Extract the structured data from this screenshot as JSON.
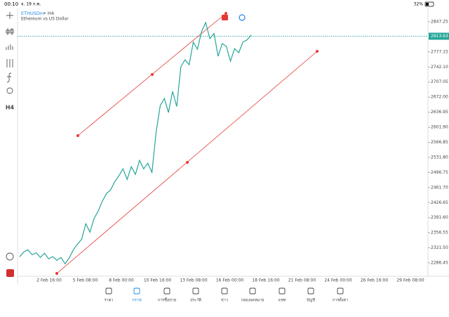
{
  "status_bar": {
    "time": "00:10",
    "date": "จ. 19 ก.พ.",
    "battery": "32%"
  },
  "symbol": {
    "name": "ETHUSDm",
    "timeframe": "• H4",
    "description": "Ethereum vs US Dollar"
  },
  "toolbar": {
    "timeframe": "H4"
  },
  "chart": {
    "type": "line",
    "color": "#26a69a",
    "values": [
      2300.6,
      2312,
      2317.0,
      2305.5,
      2310,
      2299.0,
      2308.8,
      2295.7,
      2301,
      2292.4,
      2299.0,
      2284.2,
      2298,
      2317.0,
      2330,
      2341.5,
      2377.5,
      2357.9,
      2390,
      2407.0,
      2430,
      2447.9,
      2456.1,
      2475,
      2488.9,
      2505.2,
      2480.6,
      2510.1,
      2492.1,
      2524.8,
      2505.2,
      2518.3,
      2497.0,
      2590,
      2652.6,
      2668.9,
      2636.2,
      2685.3,
      2650,
      2742.5,
      2758.9,
      2747.4,
      2799.8,
      2783.4,
      2824.3,
      2845.6,
      2808.0,
      2820,
      2767.1,
      2796.5,
      2790,
      2755.6,
      2785,
      2775.3,
      2800,
      2805,
      2816.2
    ],
    "current_price": 2813.63,
    "ylim": [
      2255.4,
      2878.3
    ],
    "yticks": [
      {
        "value": 2847.25,
        "label": "2847.25"
      },
      {
        "value": 2777.15,
        "label": "2777.15"
      },
      {
        "value": 2742.1,
        "label": "2742.10"
      },
      {
        "value": 2707.05,
        "label": "2707.05"
      },
      {
        "value": 2672,
        "label": "2672.00"
      },
      {
        "value": 2636.95,
        "label": "2636.95"
      },
      {
        "value": 2601.9,
        "label": "2601.90"
      },
      {
        "value": 2566.85,
        "label": "2566.85"
      },
      {
        "value": 2531.8,
        "label": "2531.80"
      },
      {
        "value": 2496.75,
        "label": "2496.75"
      },
      {
        "value": 2461.7,
        "label": "2461.70"
      },
      {
        "value": 2426.65,
        "label": "2426.65"
      },
      {
        "value": 2391.6,
        "label": "2391.60"
      },
      {
        "value": 2356.55,
        "label": "2356.55"
      },
      {
        "value": 2321.5,
        "label": "2321.50"
      },
      {
        "value": 2286.45,
        "label": "2286.45"
      }
    ],
    "xticks": [
      "2 Feb 16:00",
      "5 Feb 08:00",
      "8 Feb 00:00",
      "10 Feb 16:00",
      "13 Feb 08:00",
      "16 Feb 00:00",
      "18 Feb 16:00",
      "21 Feb 08:00",
      "24 Feb 00:00",
      "26 Feb 16:00",
      "29 Feb 08:00"
    ]
  },
  "nav": [
    "ราคา",
    "กราฟ",
    "การซื้อขาย",
    "ประวัติ",
    "ข่าว",
    "กล่องจดหมาย",
    "แชท",
    "บัญชี",
    "การตั้งค่า"
  ]
}
